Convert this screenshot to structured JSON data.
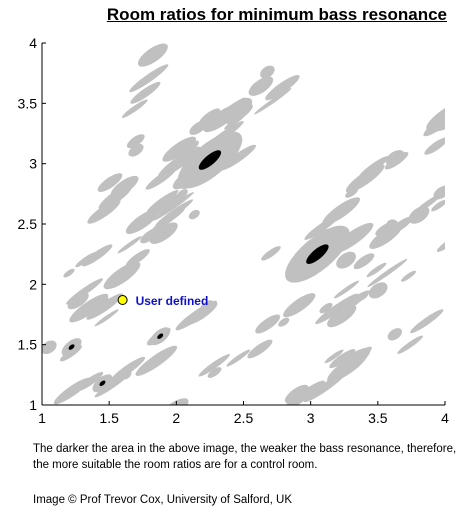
{
  "chart_data": {
    "type": "heatmap",
    "title": "Room ratios for minimum bass resonance",
    "xlabel": "",
    "ylabel": "",
    "xlim": [
      1,
      4
    ],
    "ylim": [
      1,
      4
    ],
    "x_ticks": [
      "1",
      "1.5",
      "2",
      "2.5",
      "3",
      "3.5",
      "4"
    ],
    "y_ticks": [
      "1",
      "1.5",
      "2",
      "2.5",
      "3",
      "3.5",
      "4"
    ],
    "levels": [
      "white",
      "gray",
      "black"
    ],
    "colors": {
      "low": "#ffffff",
      "mid": "#c0c0c0",
      "best": "#000000",
      "marker": "#ffff00",
      "marker_label": "#1010c8"
    },
    "best_regions": [
      {
        "x": 2.25,
        "y": 3.03
      },
      {
        "x": 3.05,
        "y": 2.25
      },
      {
        "x": 1.88,
        "y": 1.57
      },
      {
        "x": 1.22,
        "y": 1.48
      },
      {
        "x": 1.45,
        "y": 1.18
      }
    ],
    "marker": {
      "label": "User defined",
      "x": 1.6,
      "y": 1.87
    }
  },
  "caption": {
    "main": "The darker the area in the above image, the weaker the bass resonance, therefore, the more suitable the room ratios are for a control room.",
    "credit": "Image © Prof Trevor Cox, University of Salford, UK"
  }
}
